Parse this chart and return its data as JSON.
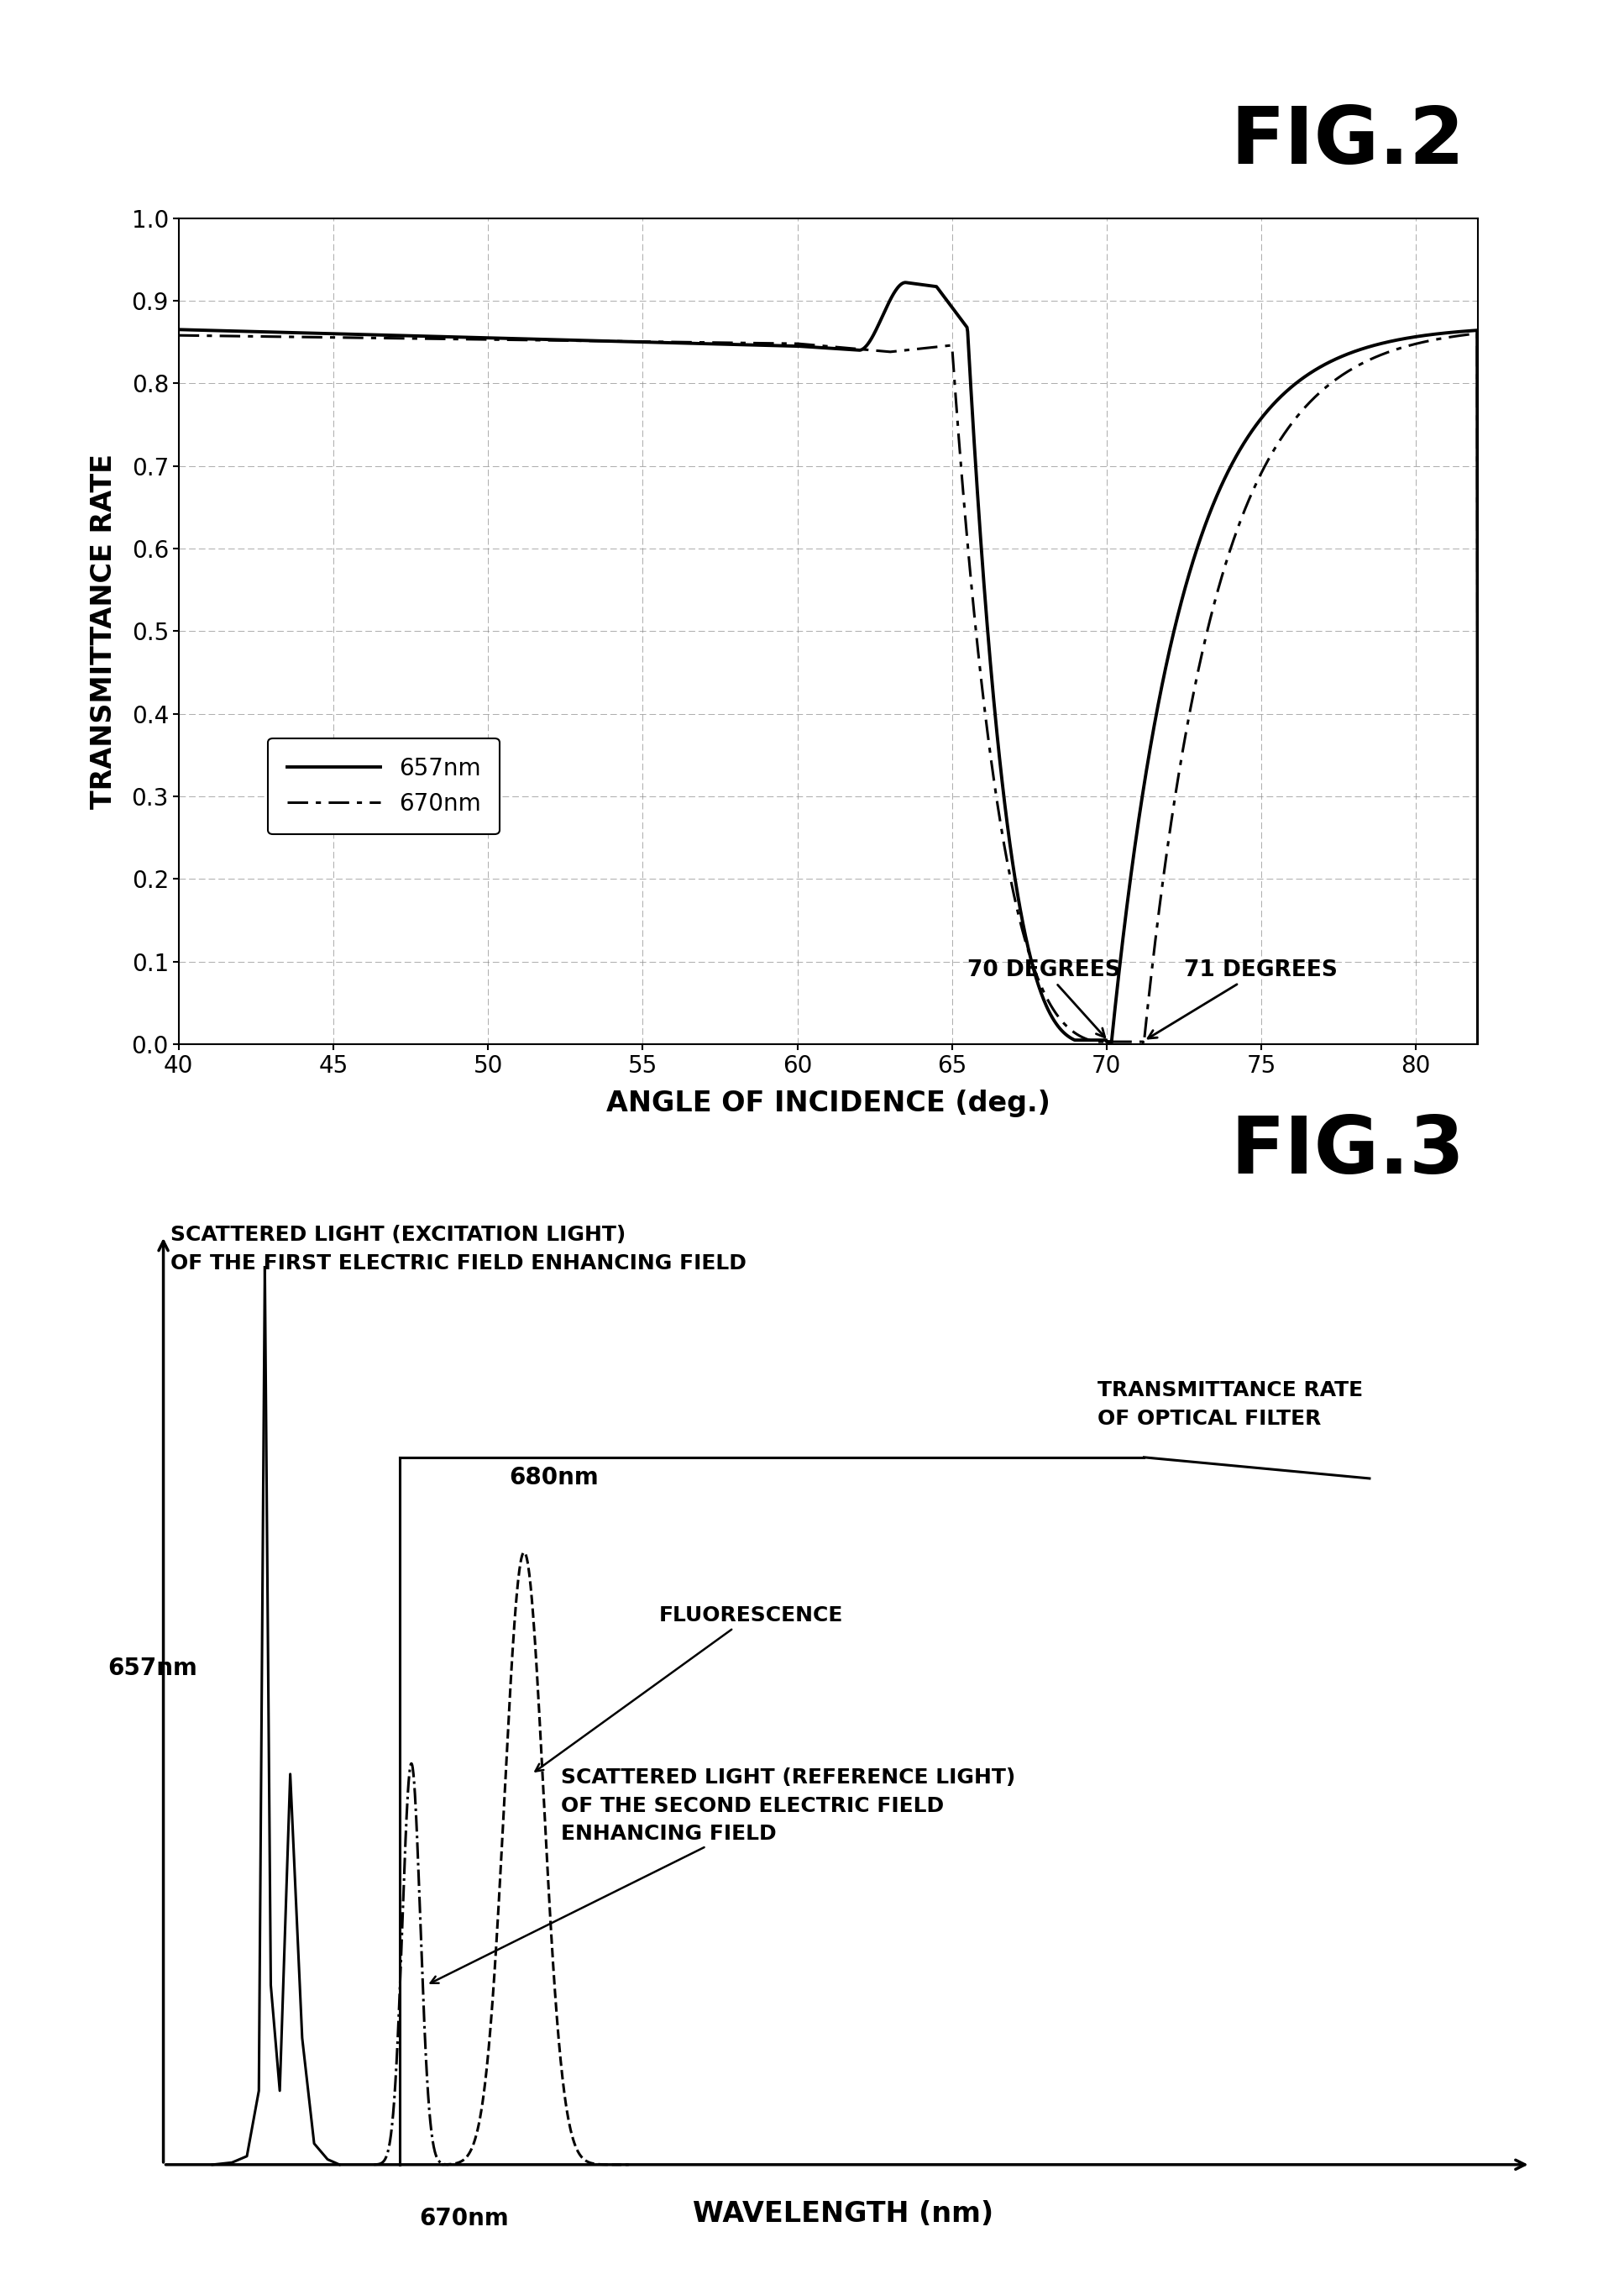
{
  "fig2_title": "FIG.2",
  "fig3_title": "FIG.3",
  "fig2_xlabel": "ANGLE OF INCIDENCE (deg.)",
  "fig2_ylabel": "TRANSMITTANCE RATE",
  "fig2_xlim": [
    40,
    82
  ],
  "fig2_ylim": [
    0,
    1.0
  ],
  "fig2_xticks": [
    40,
    45,
    50,
    55,
    60,
    65,
    70,
    75,
    80
  ],
  "fig2_yticks": [
    0,
    0.1,
    0.2,
    0.3,
    0.4,
    0.5,
    0.6,
    0.7,
    0.8,
    0.9,
    1
  ],
  "legend_657": "657nm",
  "legend_670": "670nm",
  "annot_70": "70 DEGREES",
  "annot_71": "71 DEGREES",
  "fig3_xlabel": "WAVELENGTH (nm)",
  "fig3_label_scattered1": "SCATTERED LIGHT (EXCITATION LIGHT)\nOF THE FIRST ELECTRIC FIELD ENHANCING FIELD",
  "fig3_label_transmittance": "TRANSMITTANCE RATE\nOF OPTICAL FILTER",
  "fig3_label_fluorescence": "FLUORESCENCE",
  "fig3_label_scattered2": "SCATTERED LIGHT (REFERENCE LIGHT)\nOF THE SECOND ELECTRIC FIELD\nENHANCING FIELD",
  "fig3_657nm": "657nm",
  "fig3_680nm": "680nm",
  "fig3_670nm": "670nm",
  "background_color": "#ffffff",
  "line_color": "#000000",
  "grid_color": "#888888"
}
